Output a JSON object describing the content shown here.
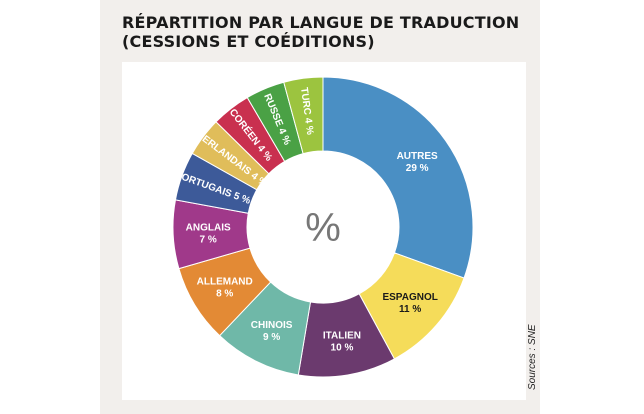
{
  "title_line1": "RÉPARTITION PAR LANGUE DE TRADUCTION",
  "title_line2": "(CESSIONS ET COÉDITIONS)",
  "source": "Sources : SNE",
  "chart_data": {
    "type": "pie",
    "donut": true,
    "center_label": "%",
    "unit": "%",
    "categories": [
      "Autres",
      "Espagnol",
      "Italien",
      "Chinois",
      "Allemand",
      "Anglais",
      "Portugais",
      "Néerlandais",
      "Coréen",
      "Russe",
      "Turc"
    ],
    "values": [
      29,
      11,
      10,
      9,
      8,
      7,
      5,
      4,
      4,
      4,
      4
    ],
    "labels": [
      "AUTRES",
      "ESPAGNOL",
      "ITALIEN",
      "CHINOIS",
      "ALLEMAND",
      "ANGLAIS",
      "PORTUGAIS",
      "NÉERLANDAIS",
      "CORÉEN",
      "RUSSE",
      "TURC"
    ],
    "value_labels": [
      "29 %",
      "11 %",
      "10 %",
      "9 %",
      "8 %",
      "7 %",
      "5 %",
      "4 %",
      "4 %",
      "4 %",
      "4 %"
    ],
    "colors": [
      "#4a8fc4",
      "#f5dc5a",
      "#6b3a6e",
      "#6fb8a8",
      "#e38a35",
      "#a0398a",
      "#3d5a99",
      "#e0bd5a",
      "#c9304f",
      "#4aa145",
      "#9cc43f"
    ],
    "label_colors": [
      "#ffffff",
      "#1a1a1a",
      "#ffffff",
      "#ffffff",
      "#ffffff",
      "#ffffff",
      "#ffffff",
      "#ffffff",
      "#ffffff",
      "#ffffff",
      "#ffffff"
    ],
    "start": "top",
    "direction": "clockwise"
  }
}
